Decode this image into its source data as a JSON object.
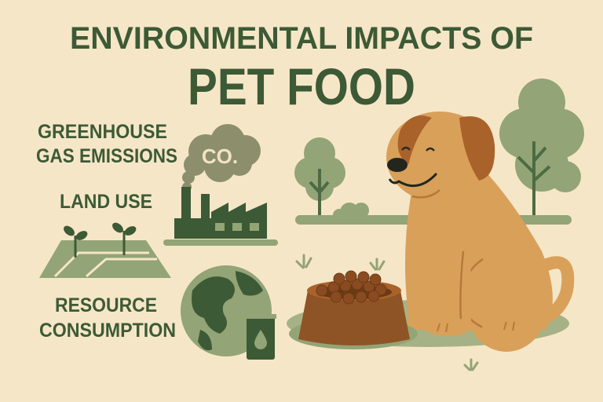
{
  "title": {
    "line1": "ENVIRONMENTAL IMPACTS OF",
    "line2": "PET FOOD"
  },
  "impacts": [
    {
      "line1": "GREENHOUSE",
      "line2": "GAS EMISSIONS",
      "icon": "factory-icon"
    },
    {
      "line1": "LAND USE",
      "icon": "sprout-field-icon"
    },
    {
      "line1": "RESOURCE",
      "line2": "CONSUMPTION",
      "icon": "globe-icon"
    }
  ],
  "cloud_text": "CO.",
  "colors": {
    "background": "#f6e6c8",
    "dark_green": "#3c5a35",
    "sage": "#93a476",
    "dog": "#d9a05a",
    "bowl": "#8f5425"
  }
}
